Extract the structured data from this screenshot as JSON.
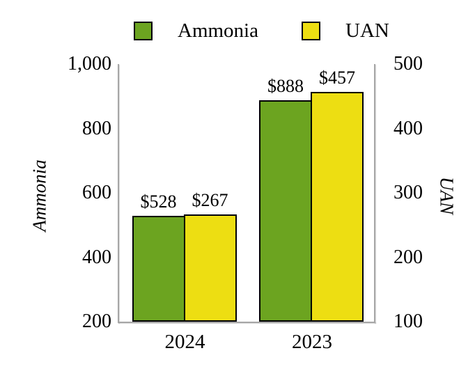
{
  "chart_data": {
    "type": "bar",
    "categories": [
      "2024",
      "2023"
    ],
    "series": [
      {
        "name": "Ammonia",
        "axis": "left",
        "values": [
          528,
          888
        ],
        "data_labels": [
          "$528",
          "$888"
        ],
        "color": "#6CA420"
      },
      {
        "name": "UAN",
        "axis": "right",
        "values": [
          267,
          457
        ],
        "data_labels": [
          "$267",
          "$457"
        ],
        "color": "#EDDE12"
      }
    ],
    "axes": {
      "left": {
        "title": "Ammonia",
        "min": 200,
        "max": 1000,
        "ticks": [
          {
            "value": 1000,
            "label": "1,000"
          },
          {
            "value": 800,
            "label": "800"
          },
          {
            "value": 600,
            "label": "600"
          },
          {
            "value": 400,
            "label": "400"
          },
          {
            "value": 200,
            "label": "200"
          }
        ]
      },
      "right": {
        "title": "UAN",
        "min": 100,
        "max": 500,
        "ticks": [
          {
            "value": 500,
            "label": "500"
          },
          {
            "value": 400,
            "label": "400"
          },
          {
            "value": 300,
            "label": "300"
          },
          {
            "value": 200,
            "label": "200"
          },
          {
            "value": 100,
            "label": "100"
          }
        ]
      }
    },
    "legend": {
      "position": "top",
      "items": [
        {
          "label": "Ammonia",
          "color": "#6CA420"
        },
        {
          "label": "UAN",
          "color": "#EDDE12"
        }
      ]
    },
    "grid": false,
    "colors": {
      "bar_border": "#000000",
      "axis_line": "#A6A6A6",
      "text": "#000000"
    }
  }
}
